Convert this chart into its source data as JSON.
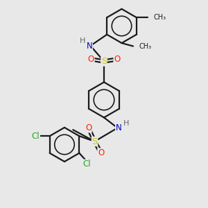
{
  "background_color": "#e8e8e8",
  "bond_color": "#1a1a1a",
  "atom_colors": {
    "N": "#0000cc",
    "S": "#cccc00",
    "O": "#ff2200",
    "Cl": "#22aa22",
    "H": "#666666",
    "C": "#1a1a1a"
  },
  "lw": 1.6,
  "fs": 8.5,
  "fig_size": [
    3.0,
    3.0
  ],
  "dpi": 100,
  "xlim": [
    0,
    10
  ],
  "ylim": [
    0,
    10
  ]
}
